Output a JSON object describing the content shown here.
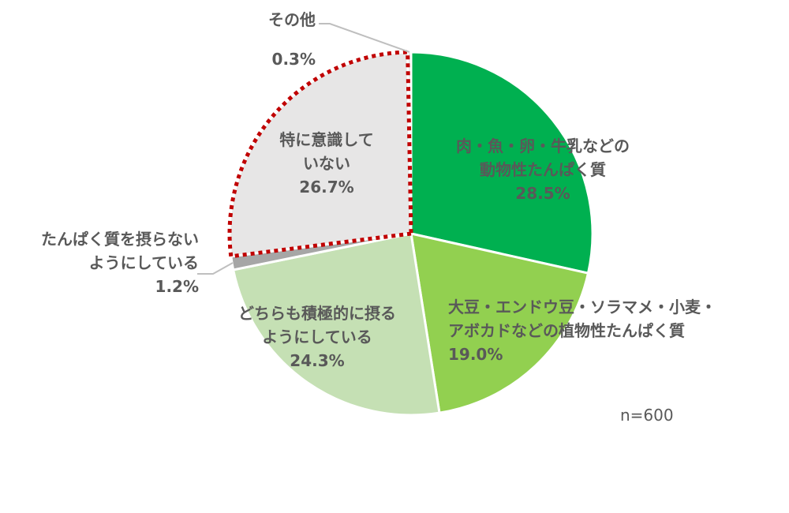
{
  "chart_data": {
    "type": "pie",
    "slices": [
      {
        "label_lines": [
          "肉・魚・卵・牛乳などの",
          "動物性たんぱく質"
        ],
        "value": 28.5,
        "value_label": "28.5%",
        "color": "#00B050"
      },
      {
        "label_lines": [
          "大豆・エンドウ豆・ソラマメ・小麦・",
          "アボカドなどの植物性たんぱく質"
        ],
        "value": 19.0,
        "value_label": "19.0%",
        "color": "#92D050"
      },
      {
        "label_lines": [
          "どちらも積極的に摂る",
          "ようにしている"
        ],
        "value": 24.3,
        "value_label": "24.3%",
        "color": "#C5E0B4"
      },
      {
        "label_lines": [
          "たんぱく質を摂らない",
          "ようにしている"
        ],
        "value": 1.2,
        "value_label": "1.2%",
        "color": "#A6A6A6"
      },
      {
        "label_lines": [
          "特に意識して",
          "いない"
        ],
        "value": 26.7,
        "value_label": "26.7%",
        "color": "#E7E6E6",
        "highlight_border": "#C00000"
      },
      {
        "label_lines": [
          "その他"
        ],
        "value": 0.3,
        "value_label": "0.3%",
        "color": "#D9D9D9"
      }
    ],
    "start": "12 o'clock, clockwise",
    "sample_note": "n=600"
  }
}
